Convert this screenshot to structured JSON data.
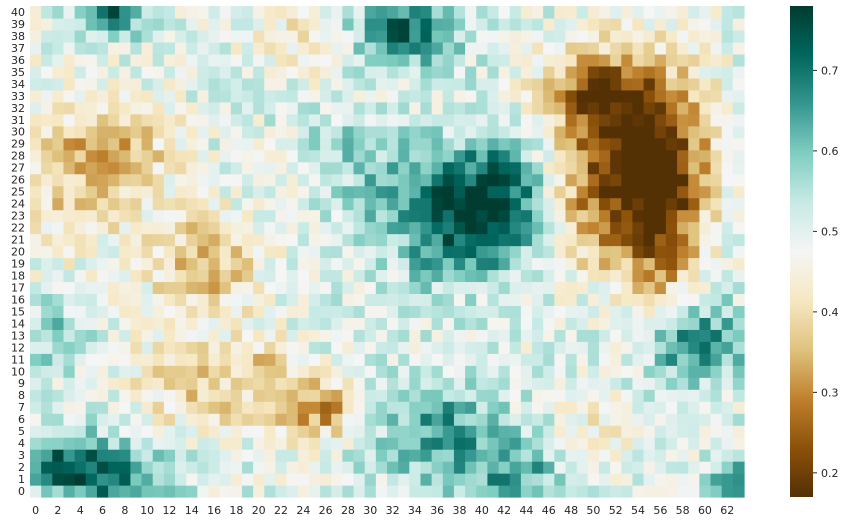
{
  "chart_data": {
    "type": "heatmap",
    "title": "",
    "xlabel": "",
    "ylabel": "",
    "colormap": "BrBG",
    "colormap_stops": [
      "#543005",
      "#8c510a",
      "#bf812d",
      "#dfc27d",
      "#f6e8c3",
      "#f5f5f5",
      "#c7eae5",
      "#80cdc1",
      "#35978f",
      "#01665e",
      "#003c30"
    ],
    "vmin": 0.17,
    "vmax": 0.78,
    "n_cols": 64,
    "n_rows": 41,
    "x_tick_labels": [
      "0",
      "2",
      "4",
      "6",
      "8",
      "10",
      "12",
      "14",
      "16",
      "18",
      "20",
      "22",
      "24",
      "26",
      "28",
      "30",
      "32",
      "34",
      "36",
      "38",
      "40",
      "42",
      "44",
      "46",
      "48",
      "50",
      "52",
      "54",
      "56",
      "58",
      "60",
      "62"
    ],
    "y_tick_labels": [
      "0",
      "1",
      "2",
      "3",
      "4",
      "5",
      "6",
      "7",
      "8",
      "9",
      "10",
      "11",
      "12",
      "13",
      "14",
      "15",
      "16",
      "17",
      "18",
      "19",
      "20",
      "21",
      "22",
      "23",
      "24",
      "25",
      "26",
      "27",
      "28",
      "29",
      "30",
      "31",
      "32",
      "33",
      "34",
      "35",
      "36",
      "37",
      "38",
      "39",
      "40"
    ],
    "colorbar_ticks": [
      0.2,
      0.3,
      0.4,
      0.5,
      0.6,
      0.7
    ],
    "colorbar_tick_labels": [
      "0.2",
      "0.3",
      "0.4",
      "0.5",
      "0.6",
      "0.7"
    ],
    "base_level": 0.5,
    "noise_amplitude": 0.07,
    "blobs": [
      {
        "cx": 53.5,
        "cy": 29.0,
        "sx": 4.5,
        "sy": 5.0,
        "amp": -0.33
      },
      {
        "cx": 50.0,
        "cy": 33.5,
        "sx": 3.5,
        "sy": 2.0,
        "amp": -0.15
      },
      {
        "cx": 56.0,
        "cy": 22.0,
        "sx": 2.5,
        "sy": 5.0,
        "amp": -0.22
      },
      {
        "cx": 49.5,
        "cy": 22.0,
        "sx": 3.0,
        "sy": 3.0,
        "amp": -0.1
      },
      {
        "cx": 41.0,
        "cy": 24.0,
        "sx": 3.5,
        "sy": 3.5,
        "amp": 0.28
      },
      {
        "cx": 33.0,
        "cy": 25.0,
        "sx": 4.0,
        "sy": 2.5,
        "amp": 0.14
      },
      {
        "cx": 36.0,
        "cy": 20.0,
        "sx": 3.0,
        "sy": 2.5,
        "amp": 0.1
      },
      {
        "cx": 33.0,
        "cy": 38.5,
        "sx": 3.5,
        "sy": 2.0,
        "amp": 0.22
      },
      {
        "cx": 6.5,
        "cy": 40.0,
        "sx": 2.0,
        "sy": 1.5,
        "amp": 0.22
      },
      {
        "cx": 3.0,
        "cy": 27.0,
        "sx": 4.0,
        "sy": 4.5,
        "amp": -0.13
      },
      {
        "cx": 9.0,
        "cy": 28.5,
        "sx": 3.0,
        "sy": 3.0,
        "amp": -0.1
      },
      {
        "cx": 15.0,
        "cy": 19.0,
        "sx": 3.5,
        "sy": 3.0,
        "amp": -0.16
      },
      {
        "cx": 15.0,
        "cy": 9.0,
        "sx": 4.5,
        "sy": 3.0,
        "amp": -0.12
      },
      {
        "cx": 25.5,
        "cy": 7.0,
        "sx": 2.5,
        "sy": 1.8,
        "amp": -0.2
      },
      {
        "cx": 21.0,
        "cy": 10.0,
        "sx": 2.0,
        "sy": 2.0,
        "amp": -0.08
      },
      {
        "cx": 6.0,
        "cy": 1.5,
        "sx": 4.0,
        "sy": 2.0,
        "amp": 0.22
      },
      {
        "cx": 2.0,
        "cy": 3.0,
        "sx": 2.0,
        "sy": 2.0,
        "amp": 0.1
      },
      {
        "cx": 36.0,
        "cy": 5.0,
        "sx": 4.0,
        "sy": 3.0,
        "amp": 0.15
      },
      {
        "cx": 43.0,
        "cy": 1.5,
        "sx": 3.0,
        "sy": 2.0,
        "amp": 0.14
      },
      {
        "cx": 59.0,
        "cy": 12.5,
        "sx": 3.0,
        "sy": 2.5,
        "amp": 0.2
      },
      {
        "cx": 2.0,
        "cy": 13.0,
        "sx": 2.0,
        "sy": 2.0,
        "amp": 0.1
      },
      {
        "cx": 62.5,
        "cy": 0.5,
        "sx": 1.5,
        "sy": 1.5,
        "amp": 0.18
      },
      {
        "cx": 24.0,
        "cy": 38.0,
        "sx": 4.0,
        "sy": 2.5,
        "amp": -0.07
      },
      {
        "cx": 51.0,
        "cy": 5.0,
        "sx": 3.0,
        "sy": 2.0,
        "amp": -0.06
      },
      {
        "cx": 28.0,
        "cy": 30.0,
        "sx": 3.0,
        "sy": 2.0,
        "amp": 0.05
      }
    ]
  }
}
